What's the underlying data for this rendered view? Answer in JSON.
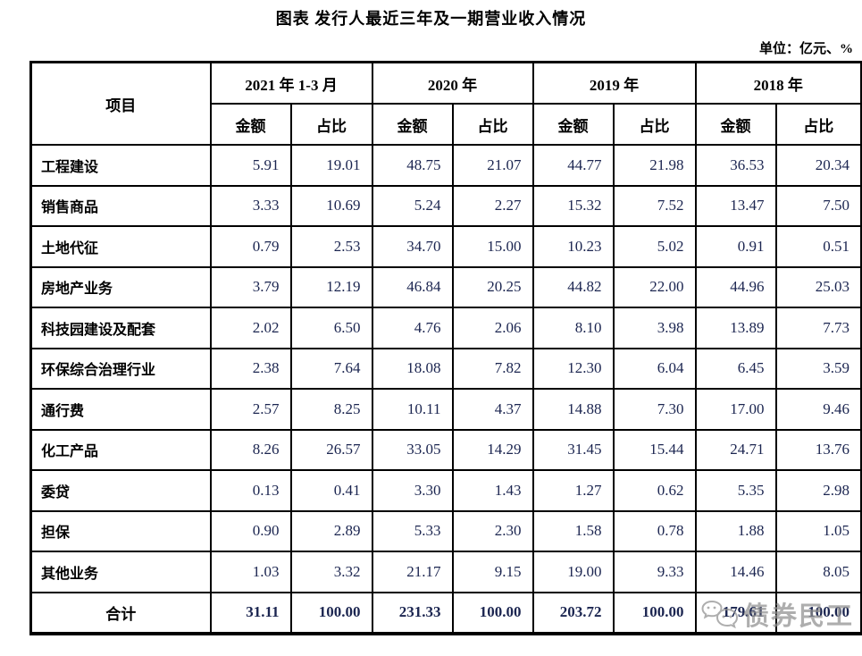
{
  "title": "图表 发行人最近三年及一期营业收入情况",
  "unit_note": "单位：亿元、%",
  "table": {
    "item_header": "项目",
    "period_headers": [
      "2021 年 1-3 月",
      "2020 年",
      "2019 年",
      "2018 年"
    ],
    "sub_headers": [
      "金额",
      "占比"
    ],
    "rows": [
      {
        "item": "工程建设",
        "values": [
          "5.91",
          "19.01",
          "48.75",
          "21.07",
          "44.77",
          "21.98",
          "36.53",
          "20.34"
        ]
      },
      {
        "item": "销售商品",
        "values": [
          "3.33",
          "10.69",
          "5.24",
          "2.27",
          "15.32",
          "7.52",
          "13.47",
          "7.50"
        ]
      },
      {
        "item": "土地代征",
        "values": [
          "0.79",
          "2.53",
          "34.70",
          "15.00",
          "10.23",
          "5.02",
          "0.91",
          "0.51"
        ]
      },
      {
        "item": "房地产业务",
        "values": [
          "3.79",
          "12.19",
          "46.84",
          "20.25",
          "44.82",
          "22.00",
          "44.96",
          "25.03"
        ]
      },
      {
        "item": "科技园建设及配套",
        "values": [
          "2.02",
          "6.50",
          "4.76",
          "2.06",
          "8.10",
          "3.98",
          "13.89",
          "7.73"
        ]
      },
      {
        "item": "环保综合治理行业",
        "values": [
          "2.38",
          "7.64",
          "18.08",
          "7.82",
          "12.30",
          "6.04",
          "6.45",
          "3.59"
        ]
      },
      {
        "item": "通行费",
        "values": [
          "2.57",
          "8.25",
          "10.11",
          "4.37",
          "14.88",
          "7.30",
          "17.00",
          "9.46"
        ]
      },
      {
        "item": "化工产品",
        "values": [
          "8.26",
          "26.57",
          "33.05",
          "14.29",
          "31.45",
          "15.44",
          "24.71",
          "13.76"
        ]
      },
      {
        "item": "委贷",
        "values": [
          "0.13",
          "0.41",
          "3.30",
          "1.43",
          "1.27",
          "0.62",
          "5.35",
          "2.98"
        ]
      },
      {
        "item": "担保",
        "values": [
          "0.90",
          "2.89",
          "5.33",
          "2.30",
          "1.58",
          "0.78",
          "1.88",
          "1.05"
        ]
      },
      {
        "item": "其他业务",
        "values": [
          "1.03",
          "3.32",
          "21.17",
          "9.15",
          "19.00",
          "9.33",
          "14.46",
          "8.05"
        ]
      }
    ],
    "total_row": {
      "item": "合计",
      "values": [
        "31.11",
        "100.00",
        "231.33",
        "100.00",
        "203.72",
        "100.00",
        "179.61",
        "100.00"
      ]
    }
  },
  "watermark": {
    "text": "债券民工",
    "icon": "chat-faces-icon"
  },
  "colors": {
    "number_text": "#1b2550",
    "border": "#000000",
    "watermark": "#8f8f8f"
  }
}
